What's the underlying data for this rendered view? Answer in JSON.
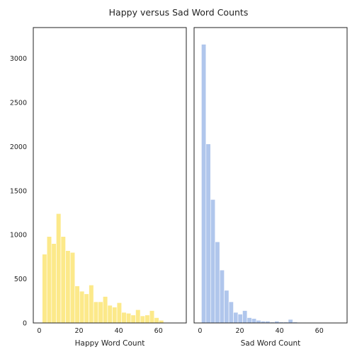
{
  "chart_data": {
    "title": "Happy versus Sad Word Counts",
    "colors": {
      "happy": "#fce98a",
      "sad": "#b0c6ec",
      "frame": "#222222"
    },
    "panels": [
      {
        "type": "bar",
        "name": "happy",
        "xlabel": "Happy Word Count",
        "ylabel": "",
        "xlim": [
          -3,
          74
        ],
        "ylim": [
          0,
          3350
        ],
        "xticks": [
          0,
          20,
          40,
          60
        ],
        "yticks": [
          0,
          500,
          1000,
          1500,
          2000,
          2500,
          3000
        ],
        "ytick_labels_visible": true,
        "grid": false,
        "bin_width": 2.35,
        "bin_edges_start": 1.5,
        "values": [
          780,
          980,
          900,
          1240,
          980,
          820,
          800,
          420,
          360,
          330,
          430,
          240,
          240,
          300,
          200,
          180,
          230,
          120,
          110,
          90,
          150,
          80,
          90,
          140,
          60,
          30
        ]
      },
      {
        "type": "bar",
        "name": "sad",
        "xlabel": "Sad Word Count",
        "ylabel": "",
        "xlim": [
          -3,
          74
        ],
        "ylim": [
          0,
          3350
        ],
        "xticks": [
          0,
          20,
          40,
          60
        ],
        "yticks": [
          0,
          500,
          1000,
          1500,
          2000,
          2500,
          3000
        ],
        "ytick_labels_visible": false,
        "grid": false,
        "bin_width": 2.3,
        "bin_edges_start": 0.7,
        "values": [
          3160,
          2030,
          1400,
          920,
          600,
          370,
          240,
          120,
          100,
          140,
          60,
          50,
          30,
          20,
          20,
          10,
          20,
          10,
          10,
          40,
          10,
          5,
          5,
          5,
          5,
          5
        ]
      }
    ]
  }
}
